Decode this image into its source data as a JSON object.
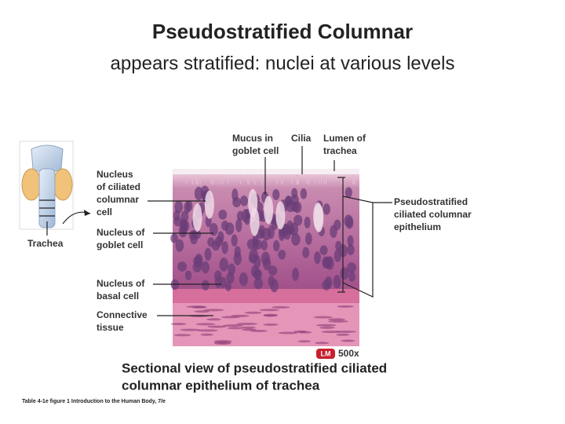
{
  "header": {
    "title": "Pseudostratified Columnar",
    "subtitle": "appears stratified: nuclei at various levels"
  },
  "figure": {
    "left_labels": [
      {
        "lines": [
          "Nucleus",
          "of ciliated",
          "columnar",
          "cell"
        ]
      },
      {
        "lines": [
          "Nucleus of",
          "goblet cell"
        ]
      },
      {
        "lines": [
          "Nucleus of",
          "basal cell"
        ]
      },
      {
        "lines": [
          "Connective",
          "tissue"
        ]
      }
    ],
    "top_labels": [
      {
        "lines": [
          "Mucus in",
          "goblet cell"
        ]
      },
      {
        "lines": [
          "Cilia"
        ]
      },
      {
        "lines": [
          "Lumen of",
          "trachea"
        ]
      }
    ],
    "right_label": {
      "lines": [
        "Pseudostratified",
        "ciliated columnar",
        "epithelium"
      ]
    },
    "inset_label": "Trachea",
    "magnification": {
      "badge": "LM",
      "value": "500x"
    },
    "caption": [
      "Sectional view of pseudostratified ciliated",
      "columnar epithelium of trachea"
    ],
    "source": "Table 4-1e figure 1  Introduction to the Human Body, 7/e"
  }
}
